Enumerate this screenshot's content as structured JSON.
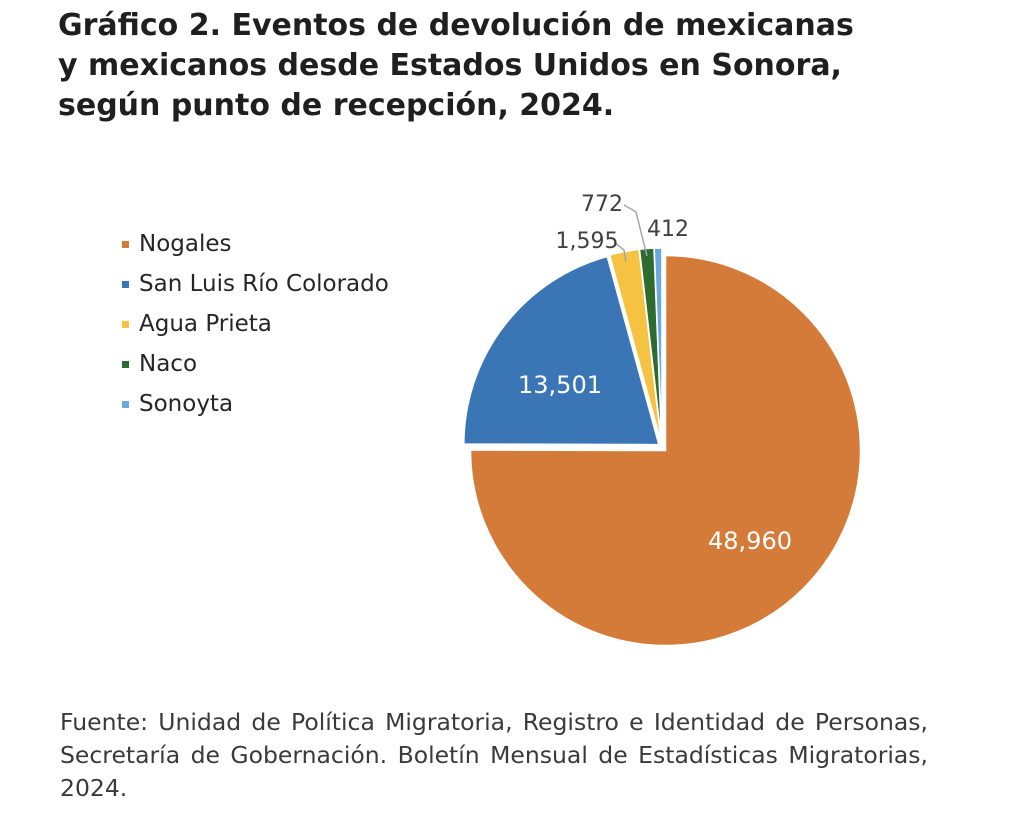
{
  "title_lines": [
    "Gráfico 2. Eventos de devolución de mexicanas",
    "y mexicanos desde Estados Unidos en Sonora,",
    "según punto de recepción, 2024."
  ],
  "source_text": "Fuente: Unidad de Política Migratoria, Registro e Identidad de Personas, Secretaría de Gobernación. Boletín Mensual de Estadísticas Migratorias, 2024.",
  "chart_data": {
    "type": "pie",
    "title": "Gráfico 2. Eventos de devolución de mexicanas y mexicanos desde Estados Unidos en Sonora, según punto de recepción, 2024.",
    "legend_position": "left",
    "categories": [
      "Nogales",
      "San Luis Río Colorado",
      "Agua Prieta",
      "Naco",
      "Sonoyta"
    ],
    "values": [
      48960,
      13501,
      1595,
      772,
      412
    ],
    "labels": [
      "48,960",
      "13,501",
      "1,595",
      "772",
      "412"
    ],
    "colors": [
      "#D57B3A",
      "#3A76B6",
      "#F5C242",
      "#2E6B30",
      "#6AA8DD"
    ]
  }
}
